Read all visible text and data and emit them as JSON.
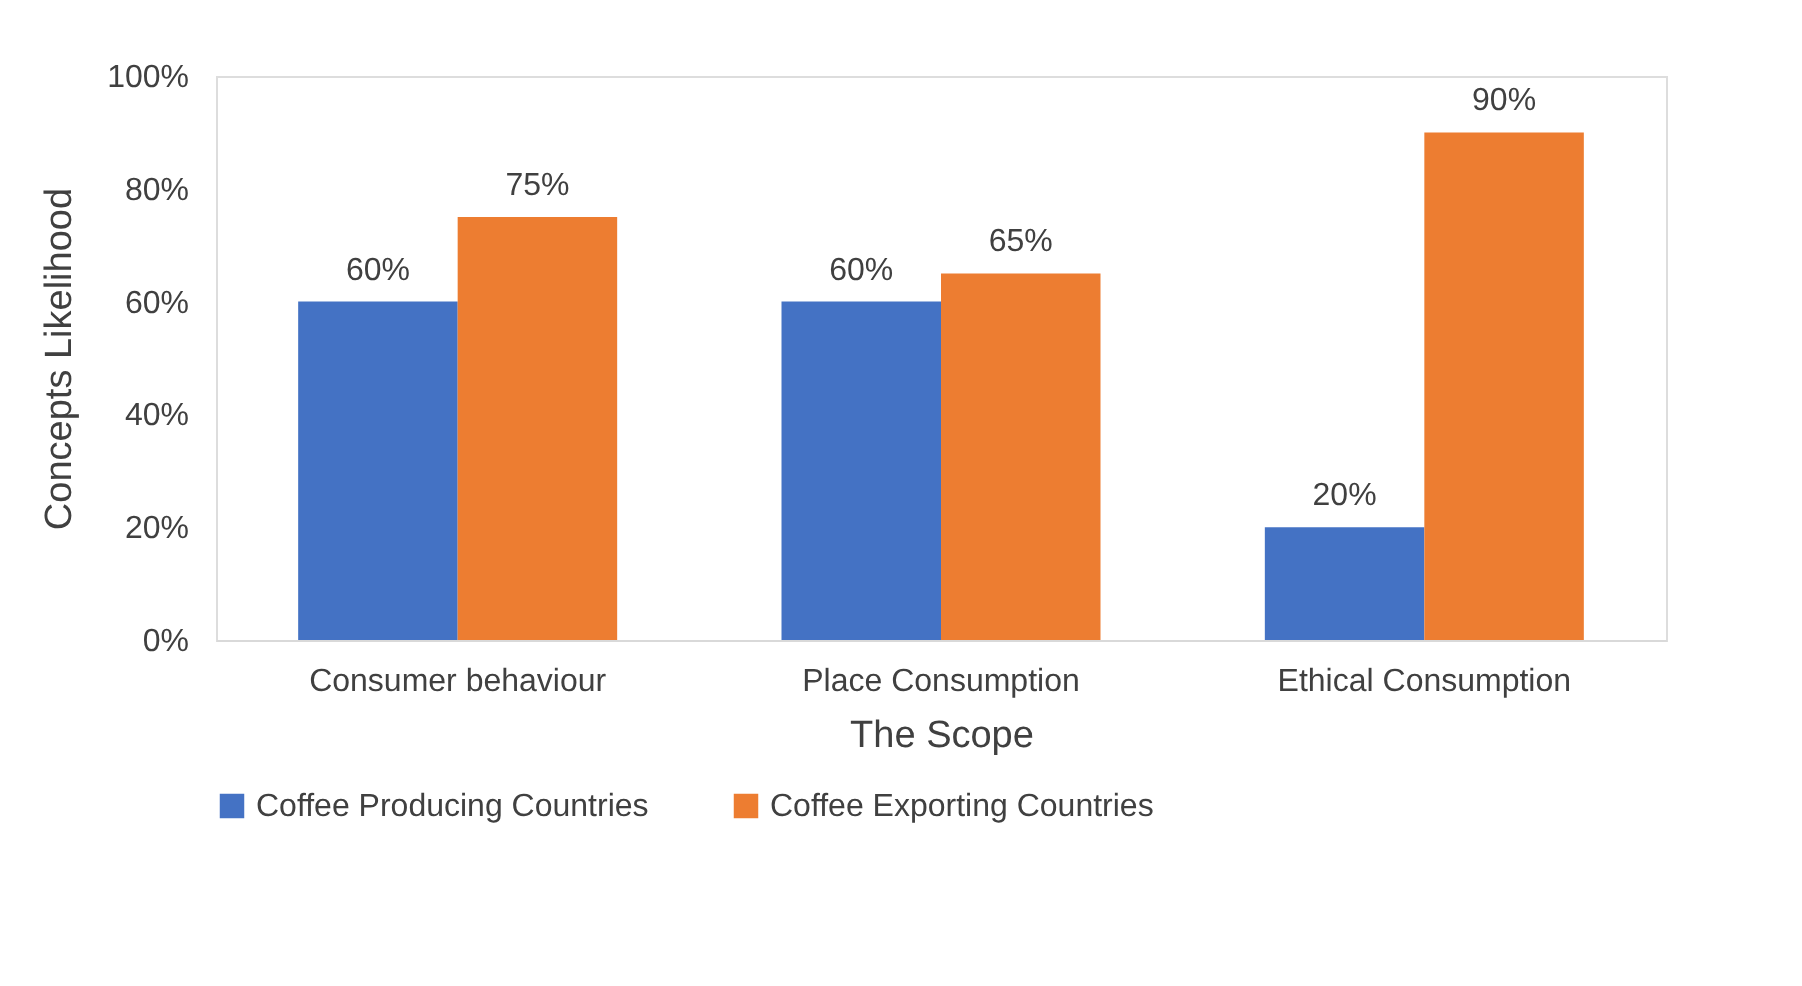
{
  "chart_data": {
    "type": "bar",
    "xlabel": "The Scope",
    "ylabel": "Concepts Likelihood",
    "categories": [
      "Consumer behaviour",
      "Place Consumption",
      "Ethical Consumption"
    ],
    "series": [
      {
        "name": "Coffee Producing Countries",
        "color": "#4472c4",
        "values": [
          60,
          60,
          20
        ],
        "value_labels": [
          "60%",
          "60%",
          "20%"
        ]
      },
      {
        "name": "Coffee Exporting Countries",
        "color": "#ed7d31",
        "values": [
          75,
          65,
          90
        ],
        "value_labels": [
          "75%",
          "65%",
          "90%"
        ]
      }
    ],
    "ylim": [
      0,
      100
    ],
    "yticks": [
      {
        "value": 0,
        "label": "0%"
      },
      {
        "value": 20,
        "label": "20%"
      },
      {
        "value": 40,
        "label": "40%"
      },
      {
        "value": 60,
        "label": "60%"
      },
      {
        "value": 80,
        "label": "80%"
      },
      {
        "value": 100,
        "label": "100%"
      }
    ],
    "grid": false,
    "legend": "bottom"
  }
}
